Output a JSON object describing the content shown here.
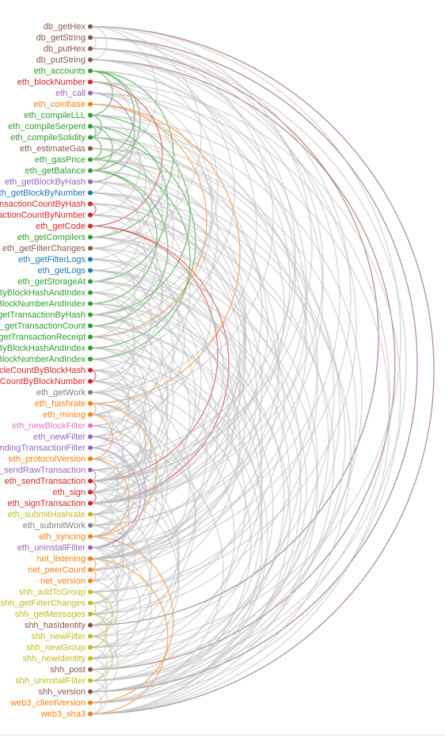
{
  "diagram": {
    "type": "arc-diagram",
    "colors": {
      "brown": "#8c564b",
      "red": "#d62728",
      "purple": "#9467bd",
      "orange": "#ff7f0e",
      "green": "#2ca02c",
      "blue": "#1f77b4",
      "pink": "#e377c2",
      "gray": "#7f7f7f",
      "olive": "#bcbd22",
      "link_default": "#bdbdbd"
    },
    "nodes": [
      {
        "label": "db_getHex",
        "color": "brown"
      },
      {
        "label": "db_getString",
        "color": "brown"
      },
      {
        "label": "db_putHex",
        "color": "brown"
      },
      {
        "label": "db_putString",
        "color": "brown"
      },
      {
        "label": "eth_accounts",
        "color": "green"
      },
      {
        "label": "eth_blockNumber",
        "color": "red"
      },
      {
        "label": "eth_call",
        "color": "purple"
      },
      {
        "label": "eth_coinbase",
        "color": "orange"
      },
      {
        "label": "eth_compileLLL",
        "color": "green"
      },
      {
        "label": "eth_compileSerpent",
        "color": "green"
      },
      {
        "label": "eth_compileSolidity",
        "color": "green"
      },
      {
        "label": "eth_estimateGas",
        "color": "brown"
      },
      {
        "label": "eth_gasPrice",
        "color": "green"
      },
      {
        "label": "eth_getBalance",
        "color": "green"
      },
      {
        "label": "eth_getBlockByHash",
        "color": "purple"
      },
      {
        "label": "eth_getBlockByNumber",
        "color": "blue"
      },
      {
        "label": "eth_getBlockTransactionCountByHash",
        "color": "red"
      },
      {
        "label": "eth_getBlockTransactionCountByNumber",
        "color": "red"
      },
      {
        "label": "eth_getCode",
        "color": "red"
      },
      {
        "label": "eth_getCompilers",
        "color": "green"
      },
      {
        "label": "eth_getFilterChanges",
        "color": "brown"
      },
      {
        "label": "eth_getFilterLogs",
        "color": "blue"
      },
      {
        "label": "eth_getLogs",
        "color": "blue"
      },
      {
        "label": "eth_getStorageAt",
        "color": "green"
      },
      {
        "label": "eth_getTransactionByBlockHashAndIndex",
        "color": "green"
      },
      {
        "label": "eth_getTransactionByBlockNumberAndIndex",
        "color": "green"
      },
      {
        "label": "eth_getTransactionByHash",
        "color": "green"
      },
      {
        "label": "eth_getTransactionCount",
        "color": "green"
      },
      {
        "label": "eth_getTransactionReceipt",
        "color": "green"
      },
      {
        "label": "eth_getUncleByBlockHashAndIndex",
        "color": "green"
      },
      {
        "label": "eth_getUncleByBlockNumberAndIndex",
        "color": "green"
      },
      {
        "label": "eth_getUncleCountByBlockHash",
        "color": "red"
      },
      {
        "label": "eth_getUncleCountByBlockNumber",
        "color": "red"
      },
      {
        "label": "eth_getWork",
        "color": "gray"
      },
      {
        "label": "eth_hashrate",
        "color": "orange"
      },
      {
        "label": "eth_mining",
        "color": "orange"
      },
      {
        "label": "eth_newBlockFilter",
        "color": "pink"
      },
      {
        "label": "eth_newFilter",
        "color": "purple"
      },
      {
        "label": "eth_newPendingTransactionFilter",
        "color": "purple"
      },
      {
        "label": "eth_protocolVersion",
        "color": "orange"
      },
      {
        "label": "eth_sendRawTransaction",
        "color": "purple"
      },
      {
        "label": "eth_sendTransaction",
        "color": "red"
      },
      {
        "label": "eth_sign",
        "color": "red"
      },
      {
        "label": "eth_signTransaction",
        "color": "red"
      },
      {
        "label": "eth_submitHashrate",
        "color": "olive"
      },
      {
        "label": "eth_submitWork",
        "color": "gray"
      },
      {
        "label": "eth_syncing",
        "color": "orange"
      },
      {
        "label": "eth_uninstallFilter",
        "color": "purple"
      },
      {
        "label": "net_listening",
        "color": "orange"
      },
      {
        "label": "net_peerCount",
        "color": "orange"
      },
      {
        "label": "net_version",
        "color": "orange"
      },
      {
        "label": "shh_addToGroup",
        "color": "olive"
      },
      {
        "label": "shh_getFilterChanges",
        "color": "olive"
      },
      {
        "label": "shh_getMessages",
        "color": "olive"
      },
      {
        "label": "shh_hasIdentity",
        "color": "brown"
      },
      {
        "label": "shh_newFilter",
        "color": "olive"
      },
      {
        "label": "shh_newGroup",
        "color": "olive"
      },
      {
        "label": "shh_newIdentity",
        "color": "olive"
      },
      {
        "label": "shh_post",
        "color": "brown"
      },
      {
        "label": "shh_uninstallFilter",
        "color": "olive"
      },
      {
        "label": "shh_version",
        "color": "brown"
      },
      {
        "label": "web3_clientVersion",
        "color": "orange"
      },
      {
        "label": "web3_sha3",
        "color": "orange"
      }
    ],
    "links": [
      [
        0,
        62,
        "brown"
      ],
      [
        1,
        60,
        "brown"
      ],
      [
        2,
        54,
        "brown"
      ],
      [
        3,
        58,
        "brown"
      ],
      [
        0,
        3,
        "link_default"
      ],
      [
        1,
        2,
        "link_default"
      ],
      [
        0,
        40,
        "link_default"
      ],
      [
        1,
        43,
        "link_default"
      ],
      [
        2,
        28,
        "link_default"
      ],
      [
        3,
        33,
        "link_default"
      ],
      [
        0,
        12,
        "link_default"
      ],
      [
        1,
        48,
        "link_default"
      ],
      [
        2,
        59,
        "link_default"
      ],
      [
        3,
        51,
        "link_default"
      ],
      [
        0,
        20,
        "link_default"
      ],
      [
        2,
        47,
        "link_default"
      ],
      [
        4,
        8,
        "green"
      ],
      [
        4,
        12,
        "green"
      ],
      [
        4,
        13,
        "green"
      ],
      [
        4,
        19,
        "green"
      ],
      [
        8,
        10,
        "green"
      ],
      [
        9,
        23,
        "green"
      ],
      [
        9,
        10,
        "green"
      ],
      [
        10,
        12,
        "green"
      ],
      [
        13,
        27,
        "green"
      ],
      [
        12,
        30,
        "green"
      ],
      [
        8,
        26,
        "green"
      ],
      [
        10,
        29,
        "green"
      ],
      [
        13,
        25,
        "green"
      ],
      [
        9,
        13,
        "green"
      ],
      [
        7,
        34,
        "orange"
      ],
      [
        7,
        28,
        "orange"
      ],
      [
        34,
        35,
        "orange"
      ],
      [
        35,
        39,
        "orange"
      ],
      [
        39,
        46,
        "orange"
      ],
      [
        48,
        49,
        "orange"
      ],
      [
        49,
        50,
        "orange"
      ],
      [
        46,
        61,
        "orange"
      ],
      [
        48,
        62,
        "orange"
      ],
      [
        34,
        46,
        "orange"
      ],
      [
        18,
        41,
        "red"
      ],
      [
        18,
        43,
        "red"
      ],
      [
        41,
        42,
        "red"
      ],
      [
        42,
        43,
        "red"
      ],
      [
        16,
        17,
        "red"
      ],
      [
        31,
        32,
        "red"
      ],
      [
        5,
        18,
        "red"
      ],
      [
        37,
        47,
        "purple"
      ],
      [
        38,
        47,
        "purple"
      ],
      [
        40,
        41,
        "purple"
      ],
      [
        6,
        14,
        "purple"
      ],
      [
        51,
        55,
        "olive"
      ],
      [
        52,
        53,
        "olive"
      ],
      [
        53,
        56,
        "olive"
      ],
      [
        55,
        59,
        "olive"
      ],
      [
        44,
        45,
        "olive"
      ],
      [
        5,
        27
      ],
      [
        5,
        41
      ],
      [
        6,
        28
      ],
      [
        6,
        45
      ],
      [
        7,
        30
      ],
      [
        11,
        26
      ],
      [
        11,
        55
      ],
      [
        12,
        40
      ],
      [
        13,
        47
      ],
      [
        14,
        36
      ],
      [
        15,
        33
      ],
      [
        15,
        49
      ],
      [
        16,
        44
      ],
      [
        17,
        52
      ],
      [
        19,
        46
      ],
      [
        20,
        58
      ],
      [
        20,
        37
      ],
      [
        21,
        49
      ],
      [
        22,
        53
      ],
      [
        22,
        42
      ],
      [
        23,
        61
      ],
      [
        24,
        51
      ],
      [
        24,
        35
      ],
      [
        25,
        56
      ],
      [
        26,
        44
      ],
      [
        27,
        60
      ],
      [
        28,
        49
      ],
      [
        29,
        57
      ],
      [
        30,
        62
      ],
      [
        31,
        45
      ],
      [
        32,
        50
      ],
      [
        33,
        59
      ],
      [
        33,
        42
      ],
      [
        34,
        53
      ],
      [
        35,
        54
      ],
      [
        36,
        49
      ],
      [
        37,
        61
      ],
      [
        38,
        48
      ],
      [
        39,
        55
      ],
      [
        40,
        56
      ],
      [
        41,
        57
      ],
      [
        41,
        48
      ],
      [
        42,
        58
      ],
      [
        43,
        54
      ],
      [
        43,
        49
      ],
      [
        44,
        52
      ],
      [
        45,
        56
      ],
      [
        46,
        53
      ],
      [
        47,
        58
      ],
      [
        47,
        50
      ],
      [
        48,
        57
      ],
      [
        8,
        43
      ],
      [
        9,
        48
      ],
      [
        10,
        51
      ],
      [
        10,
        41
      ],
      [
        11,
        43
      ],
      [
        12,
        53
      ],
      [
        13,
        41
      ],
      [
        14,
        42
      ],
      [
        15,
        43
      ],
      [
        16,
        43
      ],
      [
        17,
        48
      ],
      [
        18,
        48
      ],
      [
        19,
        43
      ],
      [
        21,
        43
      ],
      [
        22,
        48
      ],
      [
        23,
        48
      ],
      [
        24,
        43
      ],
      [
        25,
        48
      ],
      [
        26,
        41
      ],
      [
        27,
        41
      ],
      [
        28,
        41
      ],
      [
        29,
        43
      ],
      [
        30,
        41
      ],
      [
        31,
        41
      ],
      [
        32,
        43
      ],
      [
        33,
        43
      ],
      [
        34,
        48
      ],
      [
        35,
        41
      ],
      [
        36,
        48
      ],
      [
        38,
        43
      ],
      [
        5,
        61
      ],
      [
        6,
        60
      ],
      [
        8,
        62
      ],
      [
        9,
        58
      ],
      [
        11,
        59
      ],
      [
        12,
        57
      ],
      [
        14,
        60
      ],
      [
        15,
        62
      ],
      [
        16,
        59
      ],
      [
        17,
        61
      ],
      [
        19,
        60
      ],
      [
        21,
        62
      ],
      [
        22,
        61
      ],
      [
        23,
        59
      ],
      [
        25,
        60
      ],
      [
        26,
        62
      ],
      [
        27,
        58
      ],
      [
        29,
        60
      ],
      [
        31,
        62
      ],
      [
        32,
        61
      ],
      [
        4,
        41
      ],
      [
        4,
        43
      ],
      [
        5,
        13
      ],
      [
        6,
        22
      ],
      [
        7,
        20
      ],
      [
        8,
        17
      ],
      [
        9,
        19
      ],
      [
        10,
        21
      ],
      [
        11,
        24
      ],
      [
        12,
        15
      ],
      [
        14,
        23
      ],
      [
        15,
        27
      ],
      [
        16,
        26
      ],
      [
        17,
        30
      ],
      [
        18,
        31
      ],
      [
        19,
        35
      ],
      [
        20,
        28
      ],
      [
        21,
        32
      ],
      [
        22,
        37
      ],
      [
        23,
        36
      ],
      [
        24,
        32
      ],
      [
        25,
        33
      ],
      [
        26,
        40
      ],
      [
        27,
        35
      ],
      [
        28,
        38
      ],
      [
        29,
        39
      ],
      [
        30,
        37
      ],
      [
        31,
        38
      ],
      [
        32,
        42
      ],
      [
        33,
        44
      ],
      [
        34,
        38
      ],
      [
        35,
        45
      ],
      [
        36,
        42
      ],
      [
        37,
        44
      ],
      [
        38,
        46
      ],
      [
        39,
        44
      ],
      [
        40,
        47
      ],
      [
        42,
        46
      ],
      [
        44,
        50
      ],
      [
        45,
        51
      ],
      [
        46,
        52
      ],
      [
        47,
        52
      ],
      [
        48,
        53
      ],
      [
        49,
        54
      ],
      [
        50,
        55
      ],
      [
        51,
        54
      ],
      [
        52,
        57
      ],
      [
        53,
        58
      ],
      [
        54,
        57
      ],
      [
        55,
        60
      ],
      [
        56,
        59
      ],
      [
        57,
        60
      ],
      [
        58,
        61
      ],
      [
        59,
        62
      ],
      [
        60,
        62
      ],
      [
        1,
        34
      ],
      [
        3,
        26
      ],
      [
        2,
        39
      ],
      [
        0,
        56
      ],
      [
        3,
        45
      ]
    ]
  }
}
